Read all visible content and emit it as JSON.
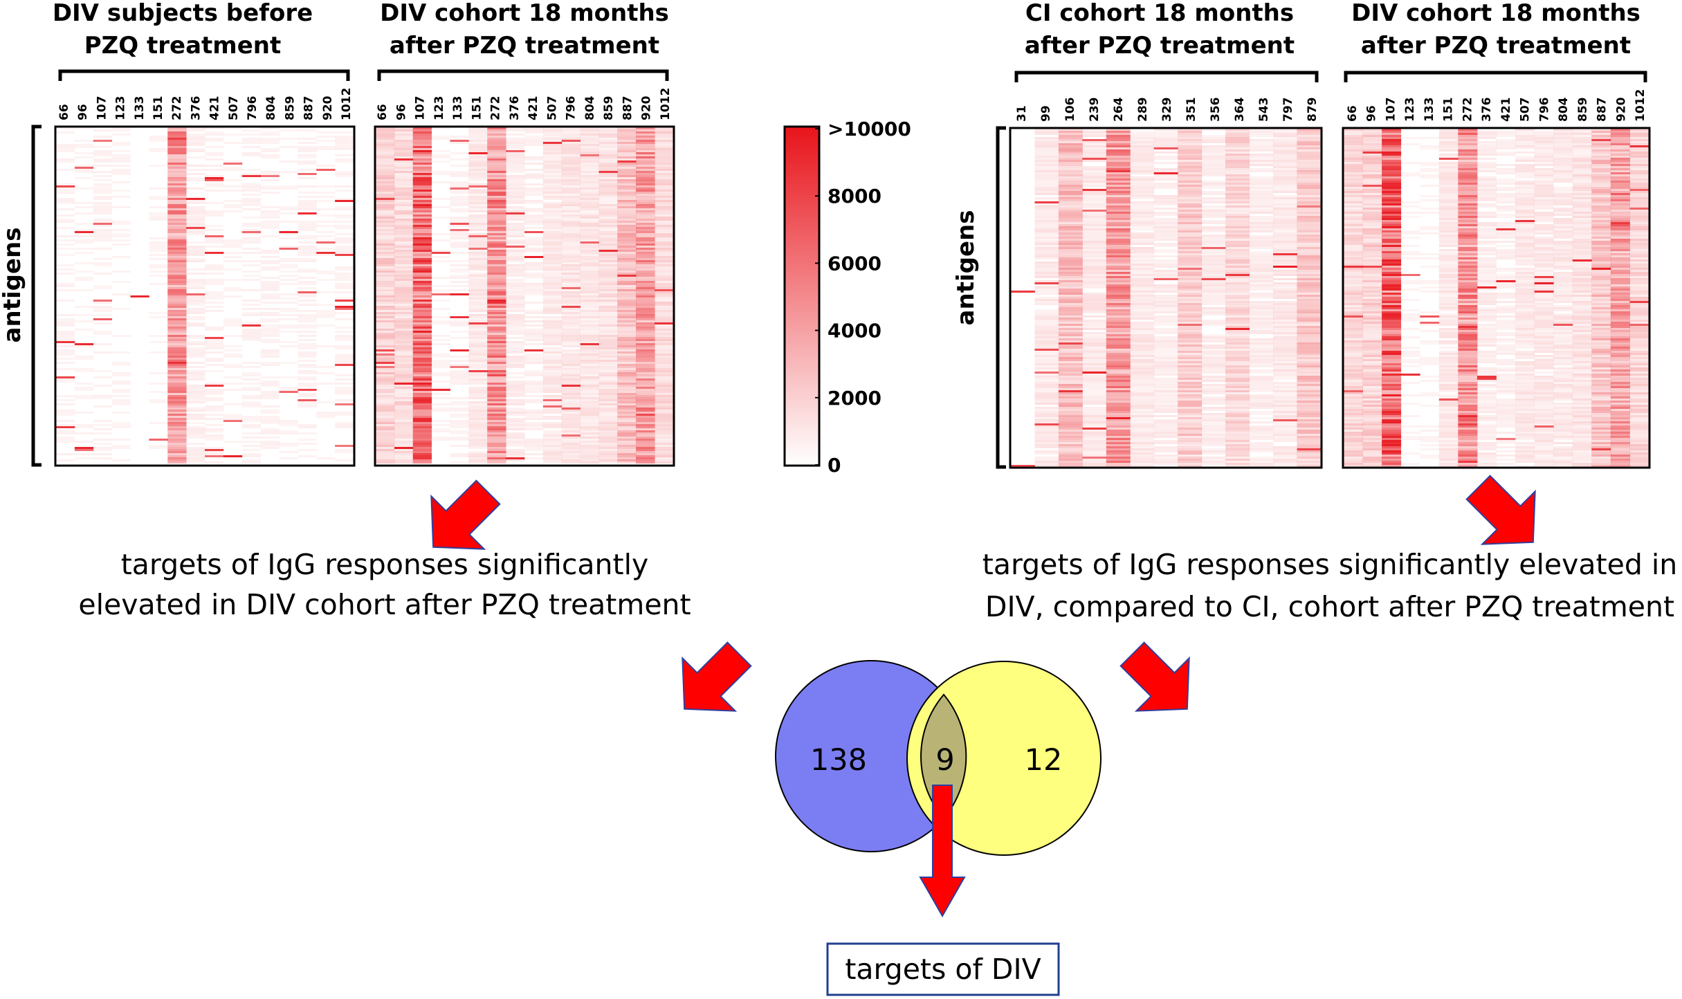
{
  "colors": {
    "heat_high": "#e8141b",
    "heat_low": "#ffffff",
    "arrow_fill": "#ff0000",
    "arrow_stroke": "#2e3f9f",
    "venn_left": "#7b7ef2",
    "venn_right": "#ffff7f",
    "venn_overlap": "#b9b476",
    "target_border": "#203f8f"
  },
  "heatmaps": [
    {
      "title_lines": [
        "DIV subjects before",
        "PZQ treatment"
      ],
      "columns": [
        "66",
        "96",
        "107",
        "123",
        "133",
        "151",
        "272",
        "376",
        "421",
        "507",
        "796",
        "804",
        "859",
        "887",
        "920",
        "1012"
      ],
      "y_label": "antigens",
      "column_intensity": [
        0.06,
        0.05,
        0.06,
        0.05,
        0.04,
        0.05,
        0.55,
        0.08,
        0.06,
        0.05,
        0.06,
        0.06,
        0.05,
        0.06,
        0.05,
        0.06
      ]
    },
    {
      "title_lines": [
        "DIV cohort 18 months",
        "after PZQ treatment"
      ],
      "columns": [
        "66",
        "96",
        "107",
        "123",
        "133",
        "151",
        "272",
        "376",
        "421",
        "507",
        "796",
        "804",
        "859",
        "887",
        "920",
        "1012"
      ],
      "y_label": "",
      "column_intensity": [
        0.25,
        0.2,
        0.8,
        0.05,
        0.06,
        0.12,
        0.6,
        0.1,
        0.08,
        0.12,
        0.14,
        0.14,
        0.16,
        0.35,
        0.55,
        0.2
      ]
    },
    {
      "title_lines": [
        "CI cohort 18 months",
        "after PZQ treatment"
      ],
      "columns": [
        "31",
        "99",
        "106",
        "239",
        "264",
        "289",
        "329",
        "351",
        "356",
        "364",
        "543",
        "797",
        "879"
      ],
      "y_label": "antigens",
      "column_intensity": [
        0.04,
        0.12,
        0.35,
        0.12,
        0.55,
        0.12,
        0.1,
        0.28,
        0.1,
        0.22,
        0.1,
        0.12,
        0.3
      ]
    },
    {
      "title_lines": [
        "DIV cohort 18 months",
        "after PZQ treatment"
      ],
      "columns": [
        "66",
        "96",
        "107",
        "123",
        "133",
        "151",
        "272",
        "376",
        "421",
        "507",
        "796",
        "804",
        "859",
        "887",
        "920",
        "1012"
      ],
      "y_label": "",
      "column_intensity": [
        0.22,
        0.25,
        0.85,
        0.05,
        0.05,
        0.12,
        0.6,
        0.1,
        0.08,
        0.12,
        0.12,
        0.12,
        0.15,
        0.32,
        0.5,
        0.22
      ]
    }
  ],
  "colorbar": {
    "ticks": [
      ">10000",
      "8000",
      "6000",
      "4000",
      "2000",
      "0"
    ]
  },
  "captions": {
    "left": [
      "targets of IgG responses significantly",
      "elevated in DIV cohort after PZQ treatment"
    ],
    "right": [
      "targets of IgG responses significantly elevated in",
      "DIV, compared to CI, cohort after PZQ treatment"
    ]
  },
  "venn": {
    "left_count": "138",
    "overlap_count": "9",
    "right_count": "12"
  },
  "result_box": {
    "label": "targets of DIV"
  }
}
